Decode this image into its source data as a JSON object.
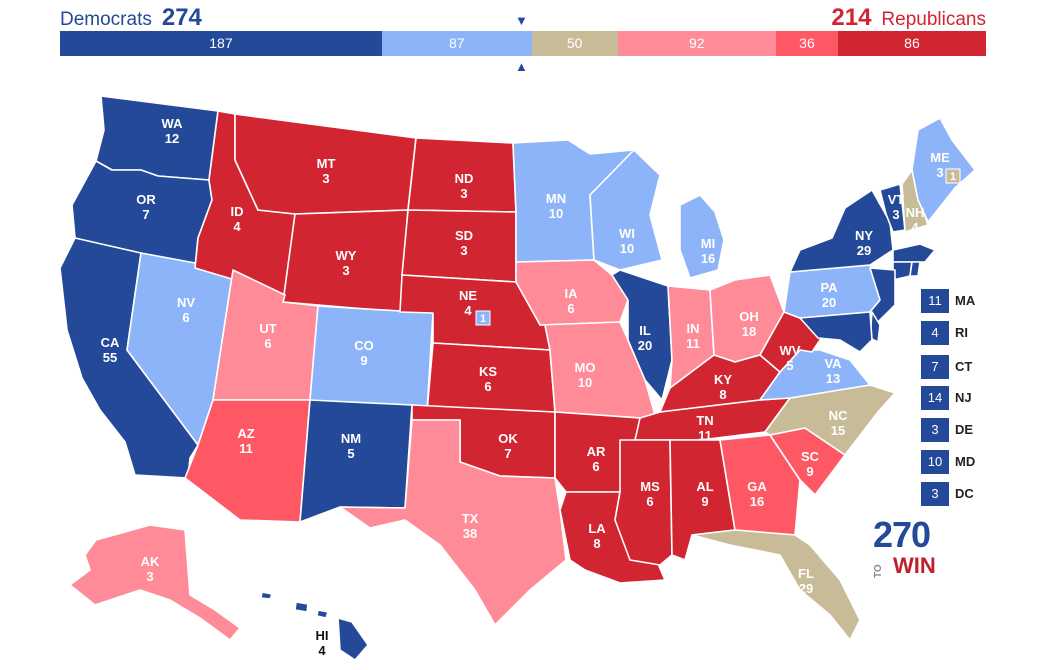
{
  "header": {
    "dem_label": "Democrats",
    "dem_total": "274",
    "rep_total": "214",
    "rep_label": "Republicans",
    "marker_top": "▼",
    "marker_bottom": "▲"
  },
  "summary_bar": [
    {
      "id": "safe-d",
      "value": "187",
      "color": "#244999"
    },
    {
      "id": "likely-d",
      "value": "87",
      "color": "#8db4f9"
    },
    {
      "id": "tossup",
      "value": "50",
      "color": "#c8bc98"
    },
    {
      "id": "leans-r",
      "value": "92",
      "color": "#ff8a98"
    },
    {
      "id": "likely-r",
      "value": "36",
      "color": "#ff5865"
    },
    {
      "id": "safe-r",
      "value": "86",
      "color": "#d22532"
    }
  ],
  "colors": {
    "safe_d": "#244999",
    "likely_d": "#8db4f9",
    "tossup": "#c8bc98",
    "leans_r": "#ff8a98",
    "likely_r": "#ff5865",
    "safe_r": "#d22532"
  },
  "states": [
    {
      "abbr": "WA",
      "ev": "12",
      "cat": "safe_d"
    },
    {
      "abbr": "OR",
      "ev": "7",
      "cat": "safe_d"
    },
    {
      "abbr": "CA",
      "ev": "55",
      "cat": "safe_d"
    },
    {
      "abbr": "NV",
      "ev": "6",
      "cat": "likely_d"
    },
    {
      "abbr": "ID",
      "ev": "4",
      "cat": "safe_r"
    },
    {
      "abbr": "MT",
      "ev": "3",
      "cat": "safe_r"
    },
    {
      "abbr": "WY",
      "ev": "3",
      "cat": "safe_r"
    },
    {
      "abbr": "UT",
      "ev": "6",
      "cat": "leans_r"
    },
    {
      "abbr": "CO",
      "ev": "9",
      "cat": "likely_d"
    },
    {
      "abbr": "AZ",
      "ev": "11",
      "cat": "likely_r"
    },
    {
      "abbr": "NM",
      "ev": "5",
      "cat": "safe_d"
    },
    {
      "abbr": "ND",
      "ev": "3",
      "cat": "safe_r"
    },
    {
      "abbr": "SD",
      "ev": "3",
      "cat": "safe_r"
    },
    {
      "abbr": "NE",
      "ev": "4",
      "cat": "safe_r"
    },
    {
      "abbr": "KS",
      "ev": "6",
      "cat": "safe_r"
    },
    {
      "abbr": "OK",
      "ev": "7",
      "cat": "safe_r"
    },
    {
      "abbr": "TX",
      "ev": "38",
      "cat": "leans_r"
    },
    {
      "abbr": "MN",
      "ev": "10",
      "cat": "likely_d"
    },
    {
      "abbr": "IA",
      "ev": "6",
      "cat": "leans_r"
    },
    {
      "abbr": "MO",
      "ev": "10",
      "cat": "leans_r"
    },
    {
      "abbr": "AR",
      "ev": "6",
      "cat": "safe_r"
    },
    {
      "abbr": "LA",
      "ev": "8",
      "cat": "safe_r"
    },
    {
      "abbr": "WI",
      "ev": "10",
      "cat": "likely_d"
    },
    {
      "abbr": "IL",
      "ev": "20",
      "cat": "safe_d"
    },
    {
      "abbr": "MI",
      "ev": "16",
      "cat": "likely_d"
    },
    {
      "abbr": "IN",
      "ev": "11",
      "cat": "leans_r"
    },
    {
      "abbr": "OH",
      "ev": "18",
      "cat": "leans_r"
    },
    {
      "abbr": "KY",
      "ev": "8",
      "cat": "safe_r"
    },
    {
      "abbr": "TN",
      "ev": "11",
      "cat": "safe_r"
    },
    {
      "abbr": "MS",
      "ev": "6",
      "cat": "safe_r"
    },
    {
      "abbr": "AL",
      "ev": "9",
      "cat": "safe_r"
    },
    {
      "abbr": "GA",
      "ev": "16",
      "cat": "likely_r"
    },
    {
      "abbr": "FL",
      "ev": "29",
      "cat": "tossup"
    },
    {
      "abbr": "SC",
      "ev": "9",
      "cat": "likely_r"
    },
    {
      "abbr": "NC",
      "ev": "15",
      "cat": "tossup"
    },
    {
      "abbr": "VA",
      "ev": "13",
      "cat": "likely_d"
    },
    {
      "abbr": "WV",
      "ev": "5",
      "cat": "safe_r"
    },
    {
      "abbr": "PA",
      "ev": "20",
      "cat": "likely_d"
    },
    {
      "abbr": "NY",
      "ev": "29",
      "cat": "safe_d"
    },
    {
      "abbr": "VT",
      "ev": "3",
      "cat": "safe_d"
    },
    {
      "abbr": "NH",
      "ev": "4",
      "cat": "tossup"
    },
    {
      "abbr": "ME",
      "ev": "3",
      "cat": "likely_d"
    },
    {
      "abbr": "AK",
      "ev": "3",
      "cat": "leans_r"
    },
    {
      "abbr": "HI",
      "ev": "4",
      "cat": "safe_d"
    }
  ],
  "district_badges": [
    {
      "state": "ME",
      "value": "1",
      "cat": "tossup"
    },
    {
      "state": "NE",
      "value": "1",
      "cat": "likely_d"
    }
  ],
  "small_states": [
    {
      "abbr": "MA",
      "ev": "11"
    },
    {
      "abbr": "RI",
      "ev": "4"
    },
    {
      "abbr": "CT",
      "ev": "7"
    },
    {
      "abbr": "NJ",
      "ev": "14"
    },
    {
      "abbr": "DE",
      "ev": "3"
    },
    {
      "abbr": "MD",
      "ev": "10"
    },
    {
      "abbr": "DC",
      "ev": "3"
    }
  ],
  "logo": {
    "number": "270",
    "to": "TO",
    "win": "WIN"
  }
}
